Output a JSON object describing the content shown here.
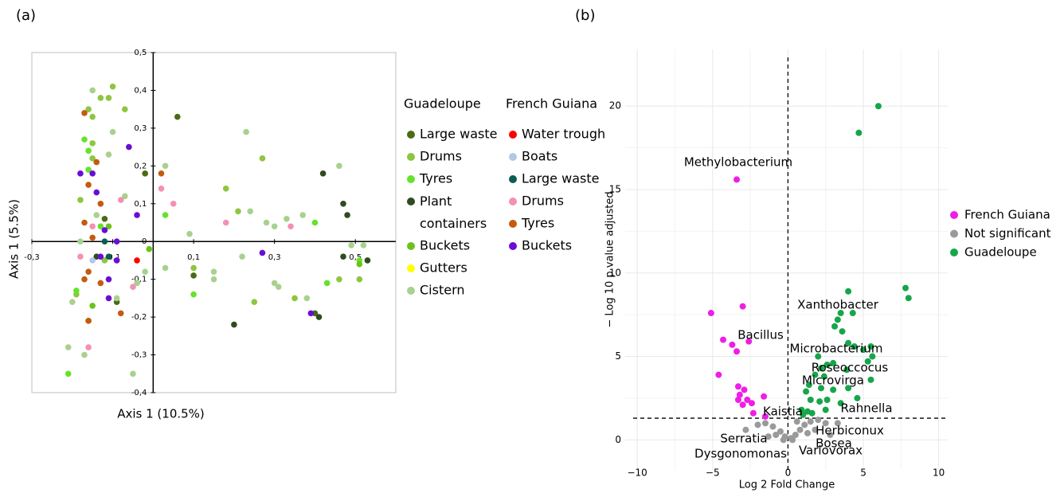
{
  "chart_data": [
    {
      "type": "scatter",
      "title": "(a)",
      "x_label": "Axis 1 (10.5%)",
      "y_label": "Axis 1 (5.5%)",
      "xlim": [
        -0.3,
        0.6
      ],
      "ylim": [
        -0.4,
        0.5
      ],
      "xticks": [
        {
          "value": -0.3,
          "label": "-0,3"
        },
        {
          "value": -0.1,
          "label": "-0,1"
        },
        {
          "value": 0.1,
          "label": "0,1"
        },
        {
          "value": 0.3,
          "label": "0,3"
        },
        {
          "value": 0.5,
          "label": "0,5"
        }
      ],
      "yticks": [
        {
          "value": 0.5,
          "label": "0,5"
        },
        {
          "value": 0.4,
          "label": "0,4"
        },
        {
          "value": 0.3,
          "label": "0,3"
        },
        {
          "value": 0.2,
          "label": "0,2"
        },
        {
          "value": 0.1,
          "label": "0,1"
        },
        0,
        {
          "value": -0.1,
          "label": "-0,1"
        },
        {
          "value": -0.2,
          "label": "-0,2"
        },
        {
          "value": -0.3,
          "label": "-0,3"
        },
        {
          "value": -0.4,
          "label": "-0,4"
        }
      ],
      "grid": false,
      "groups": [
        {
          "name": "Guadeloupe",
          "series": [
            {
              "name": "Large waste",
              "color": "#4b6a16",
              "points": [
                [
                  0.06,
                  0.33
                ],
                [
                  -0.02,
                  0.18
                ],
                [
                  0.1,
                  -0.09
                ],
                [
                  -0.12,
                  0.06
                ],
                [
                  -0.09,
                  -0.16
                ],
                [
                  0.4,
                  -0.19
                ]
              ]
            },
            {
              "name": "Drums",
              "color": "#8dc63f",
              "points": [
                [
                  -0.1,
                  0.41
                ],
                [
                  -0.11,
                  0.38
                ],
                [
                  -0.13,
                  0.38
                ],
                [
                  -0.16,
                  0.35
                ],
                [
                  -0.07,
                  0.35
                ],
                [
                  -0.15,
                  0.33
                ],
                [
                  -0.15,
                  0.26
                ],
                [
                  -0.15,
                  0.22
                ],
                [
                  0.27,
                  0.22
                ],
                [
                  -0.18,
                  0.11
                ],
                [
                  0.18,
                  0.14
                ],
                [
                  0.21,
                  0.08
                ],
                [
                  -0.12,
                  -0.05
                ],
                [
                  0.1,
                  -0.07
                ],
                [
                  0.25,
                  -0.16
                ],
                [
                  0.35,
                  -0.15
                ],
                [
                  0.46,
                  -0.1
                ],
                [
                  0.51,
                  -0.1
                ],
                [
                  -0.19,
                  -0.14
                ],
                [
                  -0.16,
                  -0.21
                ]
              ]
            },
            {
              "name": "Tyres",
              "color": "#66e22b",
              "points": [
                [
                  -0.17,
                  0.27
                ],
                [
                  -0.16,
                  0.24
                ],
                [
                  -0.16,
                  0.19
                ],
                [
                  -0.13,
                  0.04
                ],
                [
                  -0.19,
                  -0.13
                ],
                [
                  -0.21,
                  -0.35
                ],
                [
                  0.1,
                  -0.14
                ],
                [
                  0.03,
                  0.07
                ],
                [
                  0.4,
                  0.05
                ],
                [
                  0.43,
                  -0.11
                ],
                [
                  0.51,
                  -0.05
                ]
              ]
            },
            {
              "name": "Plant containers",
              "color": "#2e4c1f",
              "points": [
                [
                  0.42,
                  0.18
                ],
                [
                  0.47,
                  0.1
                ],
                [
                  0.48,
                  0.07
                ],
                [
                  0.47,
                  -0.04
                ],
                [
                  0.53,
                  -0.05
                ],
                [
                  0.2,
                  -0.22
                ],
                [
                  -0.14,
                  -0.04
                ],
                [
                  0.41,
                  -0.2
                ]
              ]
            },
            {
              "name": "Buckets",
              "color": "#6dc21a",
              "points": [
                [
                  -0.01,
                  -0.02
                ],
                [
                  0.51,
                  -0.06
                ],
                [
                  -0.15,
                  -0.17
                ],
                [
                  -0.11,
                  0.04
                ]
              ]
            },
            {
              "name": "Gutters",
              "color": "#ffff00",
              "points": []
            },
            {
              "name": "Cistern",
              "color": "#a9d18e",
              "points": [
                [
                  0.23,
                  0.29
                ],
                [
                  0.46,
                  0.2
                ],
                [
                  0.03,
                  0.2
                ],
                [
                  0.09,
                  0.02
                ],
                [
                  0.24,
                  0.08
                ],
                [
                  0.28,
                  0.05
                ],
                [
                  0.3,
                  0.04
                ],
                [
                  0.33,
                  0.06
                ],
                [
                  0.37,
                  0.07
                ],
                [
                  0.49,
                  -0.01
                ],
                [
                  0.52,
                  -0.01
                ],
                [
                  0.22,
                  -0.04
                ],
                [
                  0.15,
                  -0.08
                ],
                [
                  0.15,
                  -0.1
                ],
                [
                  0.3,
                  -0.11
                ],
                [
                  0.31,
                  -0.12
                ],
                [
                  0.38,
                  -0.15
                ],
                [
                  0.03,
                  -0.07
                ],
                [
                  -0.02,
                  -0.08
                ],
                [
                  -0.04,
                  -0.11
                ],
                [
                  -0.09,
                  -0.15
                ],
                [
                  -0.2,
                  -0.16
                ],
                [
                  -0.21,
                  -0.28
                ],
                [
                  -0.17,
                  -0.3
                ],
                [
                  -0.05,
                  -0.35
                ],
                [
                  -0.15,
                  0.4
                ],
                [
                  -0.1,
                  0.29
                ],
                [
                  -0.11,
                  0.23
                ],
                [
                  -0.07,
                  0.12
                ],
                [
                  -0.14,
                  0.07
                ],
                [
                  -0.18,
                  0.0
                ]
              ]
            }
          ]
        },
        {
          "name": "French Guiana",
          "series": [
            {
              "name": "Water trough",
              "color": "#ff0000",
              "points": [
                [
                  -0.04,
                  -0.05
                ]
              ]
            },
            {
              "name": "Boats",
              "color": "#b4c7e7",
              "points": [
                [
                  -0.15,
                  -0.05
                ]
              ]
            },
            {
              "name": "Large waste",
              "color": "#0d5c52",
              "points": [
                [
                  -0.12,
                  0.0
                ],
                [
                  -0.11,
                  -0.04
                ]
              ]
            },
            {
              "name": "Drums",
              "color": "#f490b4",
              "points": [
                [
                  0.02,
                  0.14
                ],
                [
                  0.05,
                  0.1
                ],
                [
                  0.18,
                  0.05
                ],
                [
                  0.34,
                  0.04
                ],
                [
                  -0.08,
                  0.11
                ],
                [
                  -0.15,
                  0.04
                ],
                [
                  -0.16,
                  -0.28
                ],
                [
                  -0.05,
                  -0.12
                ],
                [
                  -0.18,
                  -0.04
                ]
              ]
            },
            {
              "name": "Tyres",
              "color": "#c55a11",
              "points": [
                [
                  -0.17,
                  0.34
                ],
                [
                  0.02,
                  0.18
                ],
                [
                  -0.14,
                  0.21
                ],
                [
                  -0.17,
                  0.05
                ],
                [
                  -0.15,
                  0.01
                ],
                [
                  -0.16,
                  -0.08
                ],
                [
                  -0.13,
                  -0.11
                ],
                [
                  -0.16,
                  -0.21
                ],
                [
                  -0.17,
                  -0.1
                ],
                [
                  -0.08,
                  -0.19
                ],
                [
                  -0.16,
                  0.15
                ],
                [
                  -0.13,
                  0.1
                ]
              ]
            },
            {
              "name": "Buckets",
              "color": "#6a0dd6",
              "points": [
                [
                  -0.06,
                  0.25
                ],
                [
                  -0.18,
                  0.18
                ],
                [
                  -0.15,
                  0.18
                ],
                [
                  -0.14,
                  0.13
                ],
                [
                  -0.04,
                  0.07
                ],
                [
                  -0.12,
                  0.03
                ],
                [
                  -0.09,
                  0.0
                ],
                [
                  -0.13,
                  -0.04
                ],
                [
                  -0.11,
                  -0.1
                ],
                [
                  -0.11,
                  -0.15
                ],
                [
                  0.27,
                  -0.03
                ],
                [
                  0.39,
                  -0.19
                ],
                [
                  -0.09,
                  -0.05
                ]
              ]
            }
          ]
        }
      ]
    },
    {
      "type": "volcano",
      "title": "(b)",
      "x_label": "Log 2 Fold Change",
      "y_label": "− Log 10 p value adjusted",
      "xlim": [
        -10.8,
        10.6
      ],
      "ylim": [
        -1.8,
        23.4
      ],
      "xticks": [
        {
          "value": -10,
          "label": "−10"
        },
        {
          "value": -5,
          "label": "−5"
        },
        0,
        5,
        10
      ],
      "yticks": [
        0,
        5,
        10,
        15,
        20
      ],
      "grid": true,
      "reference_lines": {
        "x": 0,
        "y": 1.3
      },
      "series": [
        {
          "name": "French Guiana",
          "color": "#ee1ee6",
          "labels": [
            "Methylobacterium",
            "Bacillus"
          ],
          "points": [
            [
              -3.4,
              15.6
            ],
            [
              -3,
              8
            ],
            [
              -5.1,
              7.6
            ],
            [
              -4.3,
              6
            ],
            [
              -3.7,
              5.7
            ],
            [
              -2.6,
              5.9
            ],
            [
              -3.4,
              5.3
            ],
            [
              -4.6,
              3.9
            ],
            [
              -3.3,
              3.2
            ],
            [
              -2.9,
              3.0
            ],
            [
              -3.2,
              2.7
            ],
            [
              -2.7,
              2.4
            ],
            [
              -2.4,
              2.2
            ],
            [
              -3.0,
              2.1
            ],
            [
              -1.6,
              2.6
            ],
            [
              -2.3,
              1.6
            ],
            [
              -1.5,
              1.4
            ],
            [
              -3.3,
              2.4
            ]
          ]
        },
        {
          "name": "Not significant",
          "color": "#9a9a9a",
          "labels": [
            "Kaistia",
            "Herbiconux",
            "Serratia",
            "Bosea",
            "Dysgonomonas",
            "Variovorax"
          ],
          "points": [
            [
              -1.5,
              1.0
            ],
            [
              -2.8,
              0.6
            ],
            [
              -1,
              0.8
            ],
            [
              -0.5,
              0.5
            ],
            [
              -0.8,
              0.3
            ],
            [
              -0.2,
              0.2
            ],
            [
              0.2,
              0.1
            ],
            [
              0.5,
              0.3
            ],
            [
              0.8,
              0.6
            ],
            [
              1.1,
              0.9
            ],
            [
              1.5,
              1.1
            ],
            [
              2.0,
              1.2
            ],
            [
              2.5,
              1.0
            ],
            [
              1.3,
              0.4
            ],
            [
              2.8,
              0.3
            ],
            [
              -1.3,
              0.2
            ],
            [
              -0.3,
              0.0
            ],
            [
              0.3,
              0.0
            ],
            [
              1.8,
              0.6
            ],
            [
              3.3,
              1.0
            ],
            [
              -2.0,
              0.9
            ],
            [
              0.6,
              1.1
            ]
          ]
        },
        {
          "name": "Guadeloupe",
          "color": "#16a64a",
          "labels": [
            "Xanthobacter",
            "Microbacterium",
            "Roseoccocus",
            "Microvirga",
            "Rahnella"
          ],
          "points": [
            [
              6,
              20
            ],
            [
              4.7,
              18.4
            ],
            [
              7.8,
              9.1
            ],
            [
              8,
              8.5
            ],
            [
              4,
              8.9
            ],
            [
              3.5,
              7.6
            ],
            [
              4.3,
              7.6
            ],
            [
              3.3,
              7.2
            ],
            [
              3.1,
              6.8
            ],
            [
              3.6,
              6.5
            ],
            [
              4,
              5.8
            ],
            [
              4.4,
              5.6
            ],
            [
              5.5,
              5.6
            ],
            [
              5,
              5.4
            ],
            [
              5.6,
              5.0
            ],
            [
              2,
              5
            ],
            [
              3,
              4.6
            ],
            [
              2.6,
              4.5
            ],
            [
              2.2,
              4.3
            ],
            [
              3.9,
              4.2
            ],
            [
              5.3,
              4.7
            ],
            [
              1.8,
              3.9
            ],
            [
              2.4,
              3.8
            ],
            [
              5.5,
              3.6
            ],
            [
              1.4,
              3.3
            ],
            [
              2.2,
              3.1
            ],
            [
              3,
              3.0
            ],
            [
              4,
              3.1
            ],
            [
              1.2,
              2.9
            ],
            [
              1.5,
              2.4
            ],
            [
              2.1,
              2.3
            ],
            [
              2.6,
              2.4
            ],
            [
              3.5,
              2.2
            ],
            [
              4.6,
              2.5
            ],
            [
              0.9,
              1.8
            ],
            [
              1.3,
              1.7
            ],
            [
              1.6,
              1.6
            ],
            [
              2.5,
              1.8
            ],
            [
              1.0,
              1.5
            ]
          ]
        }
      ]
    }
  ]
}
